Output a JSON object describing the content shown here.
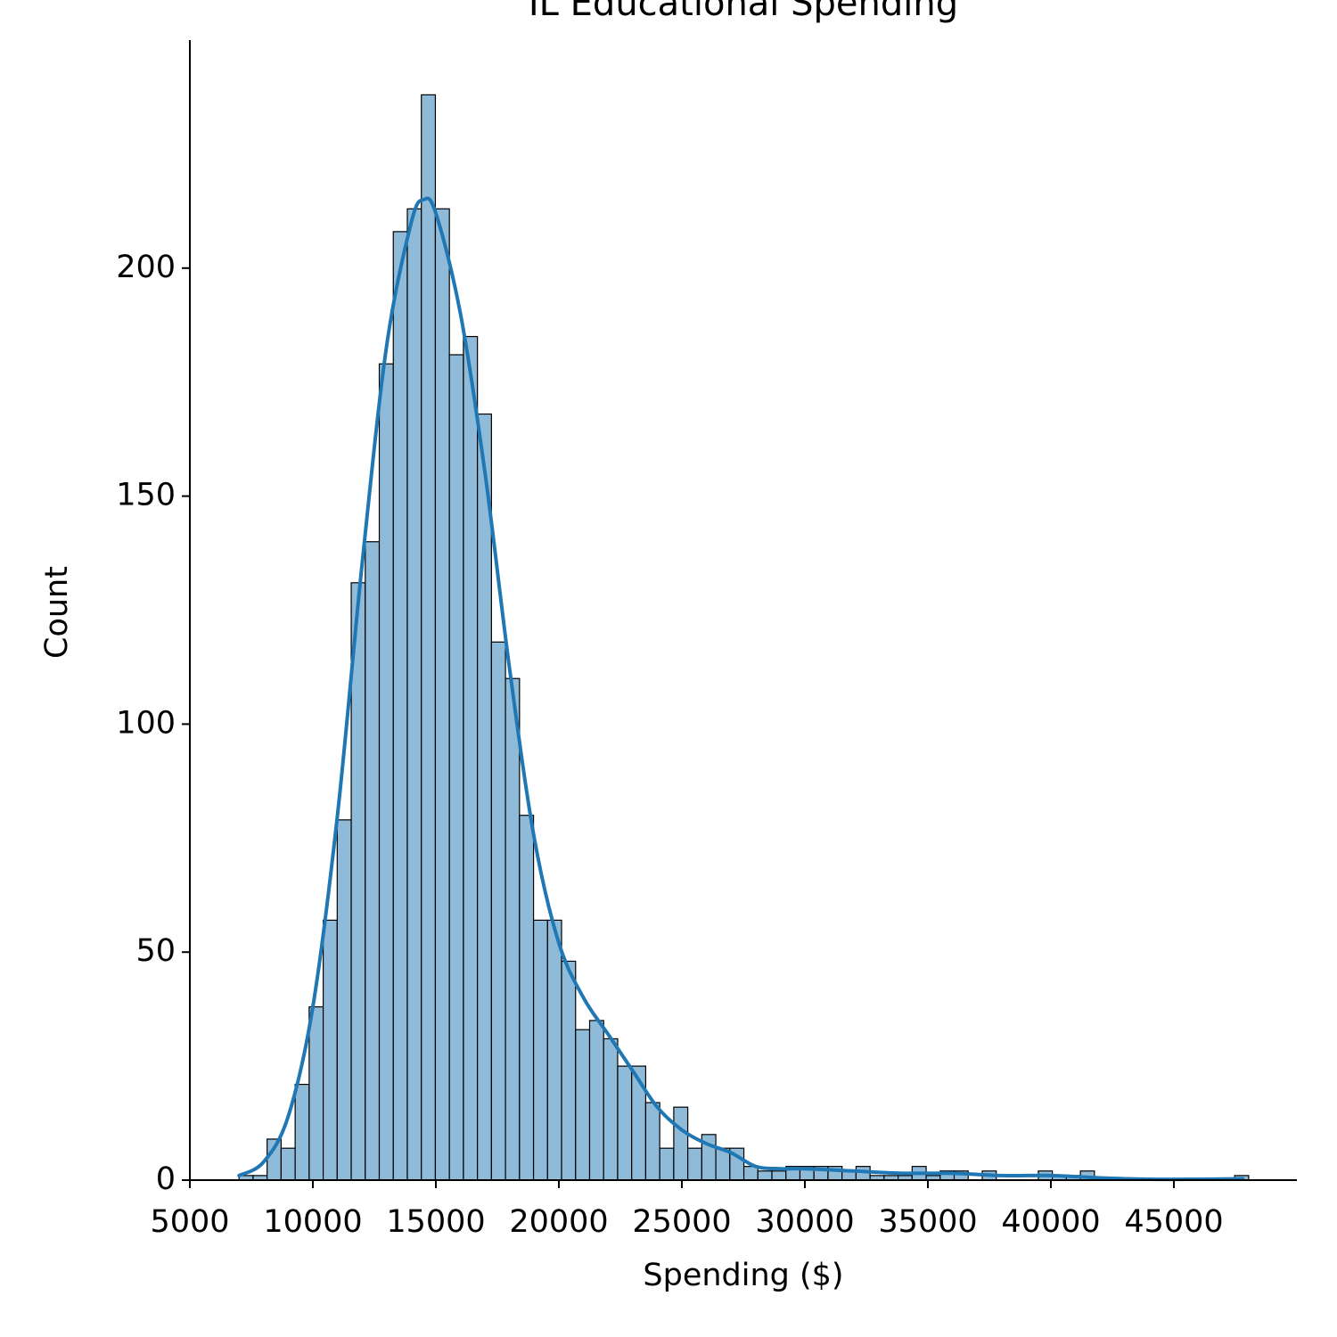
{
  "chart_data": {
    "type": "histogram",
    "title": "IL Educational Spending",
    "x_label": "Spending ($)",
    "y_label": "Count",
    "bins": [
      7000,
      7570,
      8140,
      8710,
      9280,
      9850,
      10420,
      10990,
      11560,
      12130,
      12700,
      13270,
      13840,
      14410,
      14980,
      15550,
      16120,
      16690,
      17260,
      17830,
      18400,
      18970,
      19540,
      20110,
      20680,
      21250,
      21820,
      22390,
      22960,
      23530,
      24100,
      24670,
      25240,
      25810,
      26380,
      26950,
      27520,
      28090,
      28660,
      29230,
      29800,
      30370,
      30940,
      31510,
      32080,
      32650,
      33220,
      33790,
      34360,
      34930,
      35500,
      36070,
      36640,
      37210,
      37780,
      38350,
      38920,
      39490,
      40060,
      40630,
      41200,
      41770,
      42340,
      42910,
      43480,
      44050,
      44620,
      45190,
      45760,
      46330,
      46900,
      47470,
      48040
    ],
    "values": [
      1,
      1,
      9,
      7,
      21,
      38,
      57,
      79,
      131,
      140,
      179,
      208,
      213,
      238,
      213,
      181,
      185,
      168,
      118,
      110,
      80,
      57,
      57,
      48,
      33,
      35,
      31,
      25,
      25,
      17,
      7,
      16,
      7,
      10,
      7,
      7,
      3,
      2,
      2,
      3,
      3,
      3,
      3,
      2,
      3,
      1,
      1,
      1,
      3,
      1,
      2,
      2,
      0,
      2,
      0,
      0,
      0,
      2,
      1,
      1,
      2,
      0,
      0,
      0,
      0,
      0,
      0,
      0,
      0,
      0,
      0,
      1
    ],
    "bar_color": "#8fbbd9",
    "kde": {
      "color": "#1f77b4",
      "x": [
        7000,
        8000,
        9000,
        10000,
        11000,
        12000,
        13000,
        14000,
        14500,
        15000,
        16000,
        17000,
        18000,
        19000,
        20000,
        21000,
        22000,
        23000,
        24000,
        25000,
        26000,
        27000,
        28000,
        29000,
        30000,
        32000,
        34000,
        36000,
        38000,
        40000,
        42000,
        44000,
        46000,
        47800
      ],
      "values": [
        1,
        4,
        14,
        38,
        80,
        135,
        183,
        210,
        215,
        212,
        190,
        155,
        112,
        75,
        52,
        40,
        32,
        24,
        16,
        11,
        8,
        6,
        3,
        2.5,
        2.5,
        2,
        1.5,
        1.5,
        1,
        1,
        0.5,
        0.2,
        0.2,
        0.3
      ]
    },
    "xlim": [
      5000,
      50000
    ],
    "ylim": [
      0,
      250
    ],
    "xticks": [
      5000,
      10000,
      15000,
      20000,
      25000,
      30000,
      35000,
      40000,
      45000
    ],
    "yticks": [
      0,
      50,
      100,
      150,
      200
    ]
  }
}
